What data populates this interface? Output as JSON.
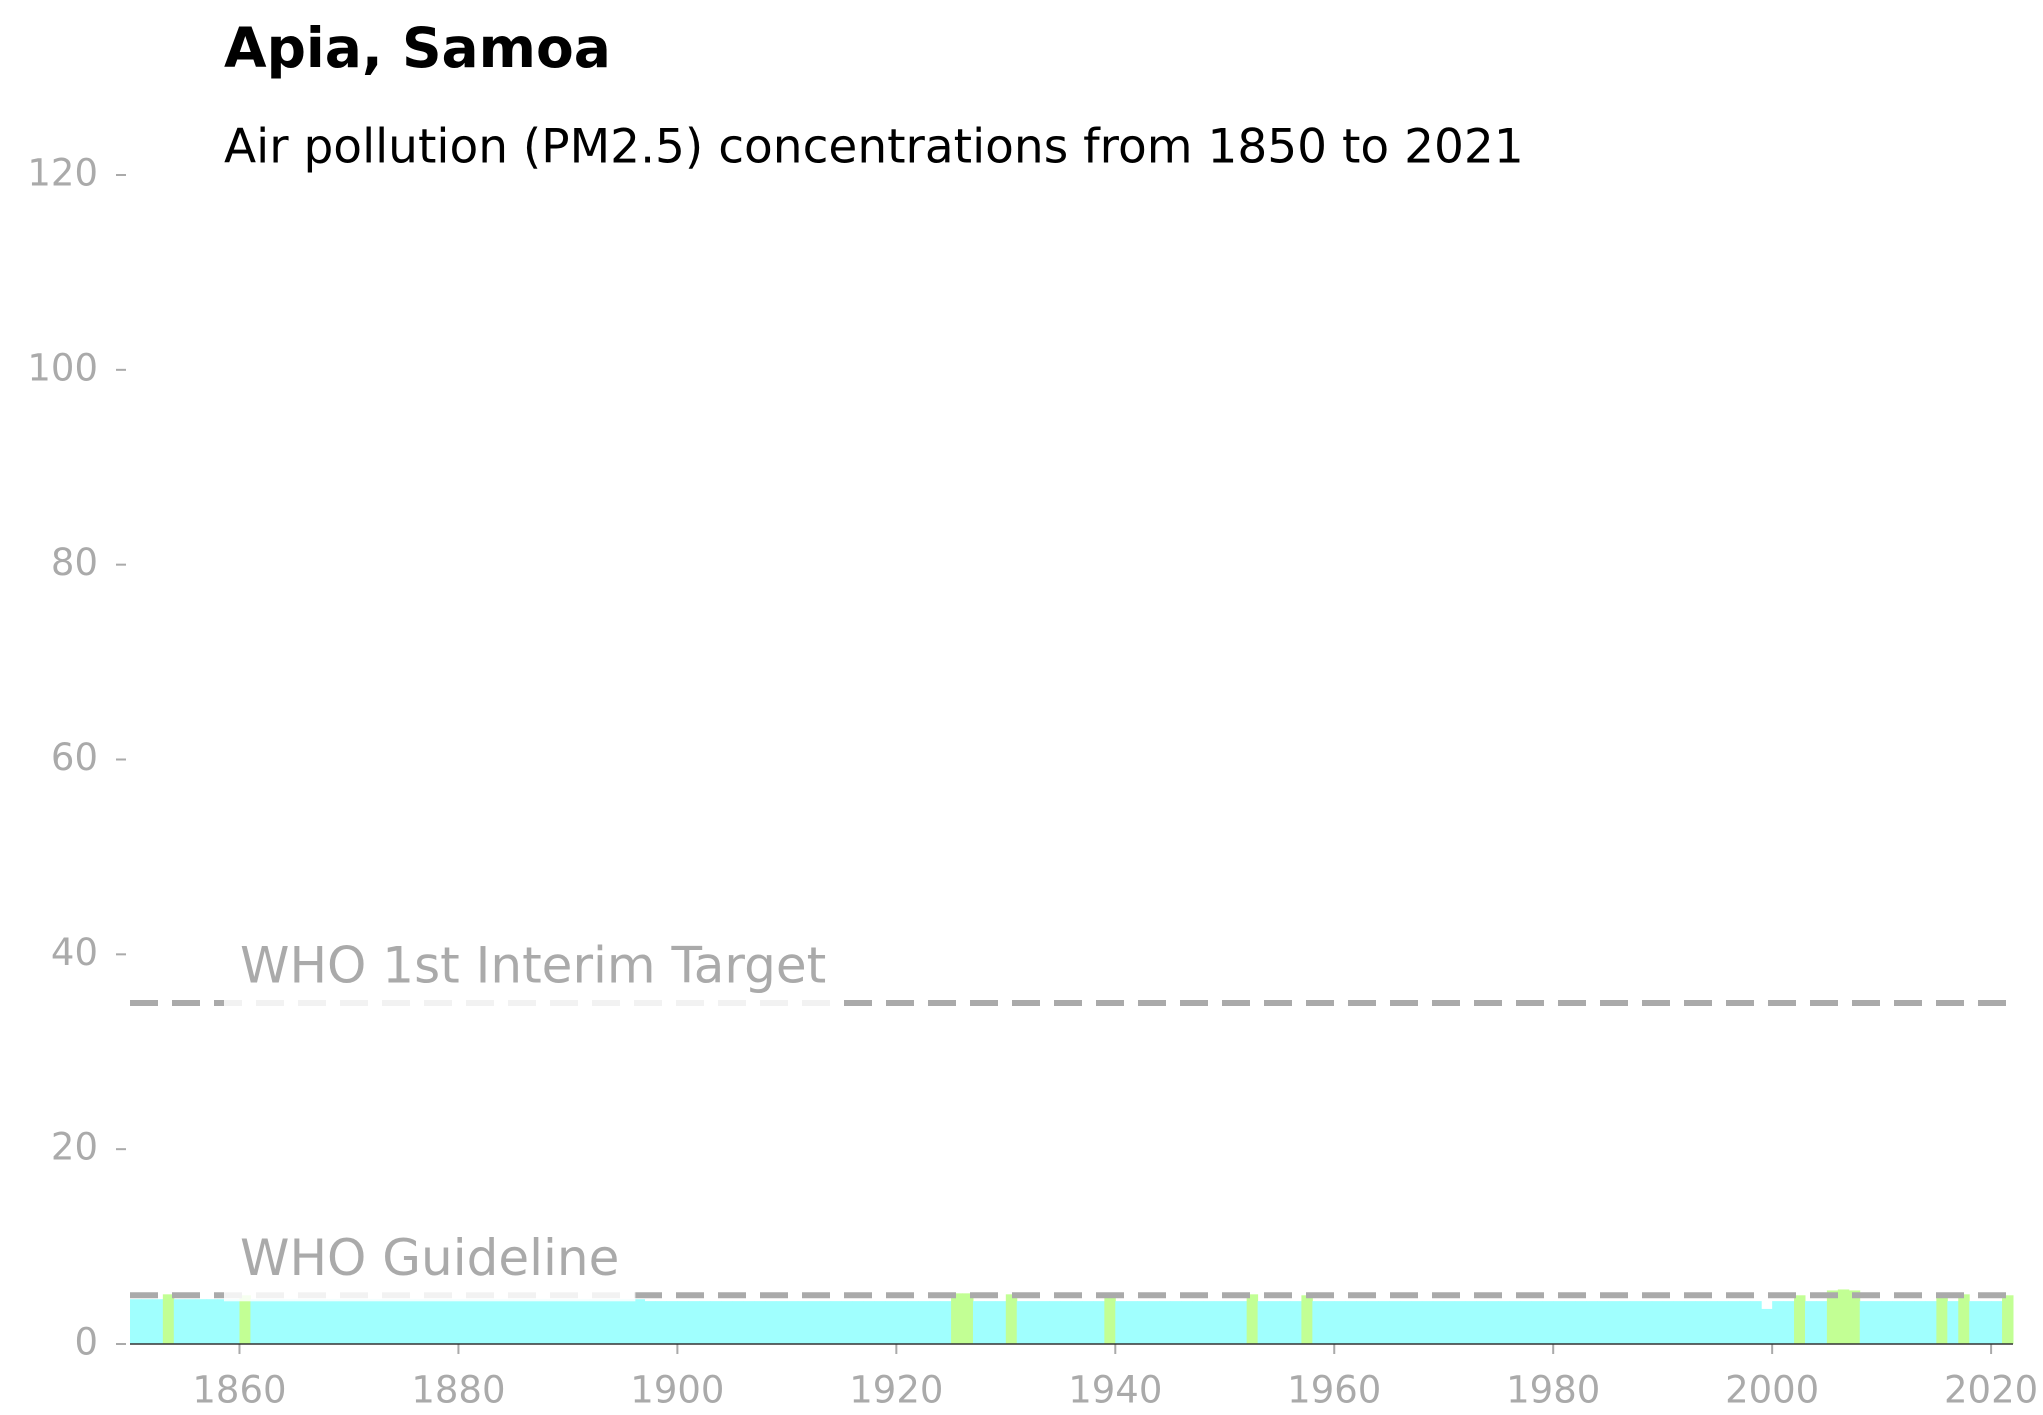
{
  "chart_data": {
    "type": "bar",
    "title": "Apia, Samoa",
    "subtitle": "Air pollution (PM2.5) concentrations from 1850 to 2021",
    "x": [
      1850,
      1851,
      1852,
      1853,
      1854,
      1855,
      1856,
      1857,
      1858,
      1859,
      1860,
      1861,
      1862,
      1863,
      1864,
      1865,
      1866,
      1867,
      1868,
      1869,
      1870,
      1871,
      1872,
      1873,
      1874,
      1875,
      1876,
      1877,
      1878,
      1879,
      1880,
      1881,
      1882,
      1883,
      1884,
      1885,
      1886,
      1887,
      1888,
      1889,
      1890,
      1891,
      1892,
      1893,
      1894,
      1895,
      1896,
      1897,
      1898,
      1899,
      1900,
      1901,
      1902,
      1903,
      1904,
      1905,
      1906,
      1907,
      1908,
      1909,
      1910,
      1911,
      1912,
      1913,
      1914,
      1915,
      1916,
      1917,
      1918,
      1919,
      1920,
      1921,
      1922,
      1923,
      1924,
      1925,
      1926,
      1927,
      1928,
      1929,
      1930,
      1931,
      1932,
      1933,
      1934,
      1935,
      1936,
      1937,
      1938,
      1939,
      1940,
      1941,
      1942,
      1943,
      1944,
      1945,
      1946,
      1947,
      1948,
      1949,
      1950,
      1951,
      1952,
      1953,
      1954,
      1955,
      1956,
      1957,
      1958,
      1959,
      1960,
      1961,
      1962,
      1963,
      1964,
      1965,
      1966,
      1967,
      1968,
      1969,
      1970,
      1971,
      1972,
      1973,
      1974,
      1975,
      1976,
      1977,
      1978,
      1979,
      1980,
      1981,
      1982,
      1983,
      1984,
      1985,
      1986,
      1987,
      1988,
      1989,
      1990,
      1991,
      1992,
      1993,
      1994,
      1995,
      1996,
      1997,
      1998,
      1999,
      2000,
      2001,
      2002,
      2003,
      2004,
      2005,
      2006,
      2007,
      2008,
      2009,
      2010,
      2011,
      2012,
      2013,
      2014,
      2015,
      2016,
      2017,
      2018,
      2019,
      2020,
      2021
    ],
    "values": [
      4.6,
      4.6,
      4.6,
      5.1,
      4.6,
      4.6,
      4.6,
      4.6,
      4.6,
      4.6,
      5.0,
      4.6,
      4.6,
      4.6,
      4.6,
      4.6,
      4.6,
      4.6,
      4.6,
      4.6,
      4.6,
      4.6,
      4.6,
      4.6,
      4.6,
      4.6,
      4.6,
      4.6,
      4.6,
      4.6,
      4.6,
      4.6,
      4.6,
      4.6,
      4.6,
      4.6,
      4.6,
      4.6,
      4.6,
      4.6,
      4.6,
      4.6,
      4.6,
      4.6,
      4.6,
      4.6,
      4.6,
      4.4,
      4.4,
      4.4,
      4.4,
      4.4,
      4.4,
      4.4,
      4.4,
      4.4,
      4.4,
      4.4,
      4.4,
      4.4,
      4.4,
      4.4,
      4.4,
      4.4,
      4.4,
      4.4,
      4.4,
      4.4,
      4.4,
      4.4,
      4.4,
      4.4,
      4.4,
      4.4,
      4.4,
      5.2,
      5.2,
      4.4,
      4.4,
      4.4,
      5.1,
      4.4,
      4.4,
      4.4,
      4.4,
      4.4,
      4.4,
      4.4,
      4.4,
      5.1,
      4.4,
      4.4,
      4.4,
      4.4,
      4.4,
      4.4,
      4.4,
      4.4,
      4.4,
      4.4,
      4.4,
      4.4,
      5.1,
      4.4,
      4.4,
      4.4,
      4.4,
      5.0,
      4.4,
      4.4,
      4.4,
      4.4,
      4.4,
      4.4,
      4.4,
      4.4,
      4.4,
      4.4,
      4.4,
      4.4,
      4.4,
      4.4,
      4.4,
      4.4,
      4.4,
      4.4,
      4.4,
      4.4,
      4.4,
      4.4,
      4.4,
      4.4,
      4.4,
      4.4,
      4.4,
      4.4,
      4.4,
      4.4,
      4.4,
      4.4,
      4.4,
      4.4,
      4.4,
      4.4,
      4.4,
      4.4,
      4.4,
      4.4,
      4.4,
      3.6,
      4.4,
      4.4,
      5.0,
      4.4,
      4.4,
      5.5,
      5.6,
      5.5,
      4.4,
      4.4,
      4.4,
      4.4,
      4.4,
      4.4,
      4.4,
      5.1,
      4.4,
      5.1,
      4.4,
      4.4,
      4.4,
      5.0
    ],
    "colors": [
      "#a0fffe",
      "#a0fffe",
      "#a0fffe",
      "#c2ff94",
      "#a0fffe",
      "#a0fffe",
      "#a0fffe",
      "#a0fffe",
      "#a0fffe",
      "#a0fffe",
      "#c2ff94",
      "#a0fffe",
      "#a0fffe",
      "#a0fffe",
      "#a0fffe",
      "#a0fffe",
      "#a0fffe",
      "#a0fffe",
      "#a0fffe",
      "#a0fffe",
      "#a0fffe",
      "#a0fffe",
      "#a0fffe",
      "#a0fffe",
      "#a0fffe",
      "#a0fffe",
      "#a0fffe",
      "#a0fffe",
      "#a0fffe",
      "#a0fffe",
      "#a0fffe",
      "#a0fffe",
      "#a0fffe",
      "#a0fffe",
      "#a0fffe",
      "#a0fffe",
      "#a0fffe",
      "#a0fffe",
      "#a0fffe",
      "#a0fffe",
      "#a0fffe",
      "#a0fffe",
      "#a0fffe",
      "#a0fffe",
      "#a0fffe",
      "#a0fffe",
      "#a0fffe",
      "#a0fffe",
      "#a0fffe",
      "#a0fffe",
      "#a0fffe",
      "#a0fffe",
      "#a0fffe",
      "#a0fffe",
      "#a0fffe",
      "#a0fffe",
      "#a0fffe",
      "#a0fffe",
      "#a0fffe",
      "#a0fffe",
      "#a0fffe",
      "#a0fffe",
      "#a0fffe",
      "#a0fffe",
      "#a0fffe",
      "#a0fffe",
      "#a0fffe",
      "#a0fffe",
      "#a0fffe",
      "#a0fffe",
      "#a0fffe",
      "#a0fffe",
      "#a0fffe",
      "#a0fffe",
      "#a0fffe",
      "#c2ff94",
      "#c2ff94",
      "#a0fffe",
      "#a0fffe",
      "#a0fffe",
      "#c2ff94",
      "#a0fffe",
      "#a0fffe",
      "#a0fffe",
      "#a0fffe",
      "#a0fffe",
      "#a0fffe",
      "#a0fffe",
      "#a0fffe",
      "#c2ff94",
      "#a0fffe",
      "#a0fffe",
      "#a0fffe",
      "#a0fffe",
      "#a0fffe",
      "#a0fffe",
      "#a0fffe",
      "#a0fffe",
      "#a0fffe",
      "#a0fffe",
      "#a0fffe",
      "#a0fffe",
      "#c2ff94",
      "#a0fffe",
      "#a0fffe",
      "#a0fffe",
      "#a0fffe",
      "#c2ff94",
      "#a0fffe",
      "#a0fffe",
      "#a0fffe",
      "#a0fffe",
      "#a0fffe",
      "#a0fffe",
      "#a0fffe",
      "#a0fffe",
      "#a0fffe",
      "#a0fffe",
      "#a0fffe",
      "#a0fffe",
      "#a0fffe",
      "#a0fffe",
      "#a0fffe",
      "#a0fffe",
      "#a0fffe",
      "#a0fffe",
      "#a0fffe",
      "#a0fffe",
      "#a0fffe",
      "#a0fffe",
      "#a0fffe",
      "#a0fffe",
      "#a0fffe",
      "#a0fffe",
      "#a0fffe",
      "#a0fffe",
      "#a0fffe",
      "#a0fffe",
      "#a0fffe",
      "#a0fffe",
      "#a0fffe",
      "#a0fffe",
      "#a0fffe",
      "#a0fffe",
      "#a0fffe",
      "#a0fffe",
      "#a0fffe",
      "#a0fffe",
      "#a0fffe",
      "#a0fffe",
      "#a0fffe",
      "#a0fffe",
      "#c2ff94",
      "#a0fffe",
      "#a0fffe",
      "#c2ff94",
      "#c2ff94",
      "#c2ff94",
      "#a0fffe",
      "#a0fffe",
      "#a0fffe",
      "#a0fffe",
      "#a0fffe",
      "#a0fffe",
      "#a0fffe",
      "#c2ff94",
      "#a0fffe",
      "#c2ff94",
      "#a0fffe",
      "#a0fffe",
      "#a0fffe",
      "#c2ff94"
    ],
    "xlim": [
      1850,
      2022
    ],
    "xticks": [
      1860,
      1880,
      1900,
      1920,
      1940,
      1960,
      1980,
      2000,
      2020
    ],
    "ylim": [
      0,
      120
    ],
    "yticks": [
      0,
      20,
      40,
      60,
      80,
      100,
      120
    ],
    "reference_lines": [
      {
        "value": 5,
        "label": "WHO Guideline",
        "color": "#aaaaaa"
      },
      {
        "value": 35,
        "label": "WHO 1st Interim Target",
        "color": "#aaaaaa"
      }
    ]
  }
}
